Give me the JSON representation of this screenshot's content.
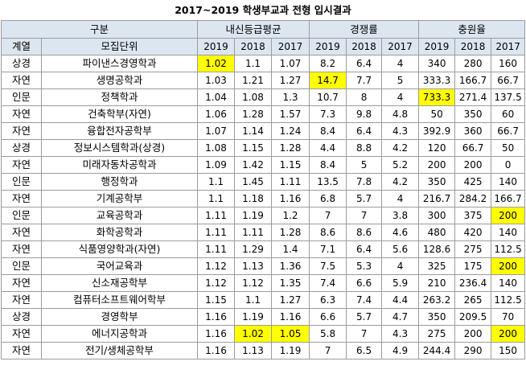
{
  "title": "2017~2019 학생부교과 전형 입시결과",
  "colors": {
    "header_bg": "#dce6f1",
    "highlight": "#ffff00",
    "border": "#9c9c9c"
  },
  "header": {
    "group": "구분",
    "grade": "내신등급평균",
    "competition": "경쟁률",
    "fill_rate": "충원율",
    "field": "계열",
    "dept": "모집단위",
    "years": [
      "2019",
      "2018",
      "2017"
    ]
  },
  "rows": [
    {
      "field": "상경",
      "dept": "파이낸스경영학과",
      "g": [
        "1.02",
        "1.1",
        "1.07"
      ],
      "c": [
        "8.2",
        "6.4",
        "4"
      ],
      "f": [
        "340",
        "280",
        "160"
      ],
      "hl": [
        1
      ]
    },
    {
      "field": "자연",
      "dept": "생명공학과",
      "g": [
        "1.03",
        "1.21",
        "1.27"
      ],
      "c": [
        "14.7",
        "7.7",
        "5"
      ],
      "f": [
        "333.3",
        "166.7",
        "66.7"
      ],
      "hl": [
        4
      ]
    },
    {
      "field": "인문",
      "dept": "정책학과",
      "g": [
        "1.04",
        "1.08",
        "1.3"
      ],
      "c": [
        "10.7",
        "8",
        "4"
      ],
      "f": [
        "733.3",
        "271.4",
        "137.5"
      ],
      "hl": [
        7
      ]
    },
    {
      "field": "자연",
      "dept": "건축학부(자연)",
      "g": [
        "1.06",
        "1.28",
        "1.57"
      ],
      "c": [
        "7.3",
        "9.8",
        "4.8"
      ],
      "f": [
        "50",
        "350",
        "60"
      ],
      "hl": []
    },
    {
      "field": "자연",
      "dept": "융합전자공학부",
      "g": [
        "1.07",
        "1.14",
        "1.24"
      ],
      "c": [
        "8.4",
        "6.4",
        "4.3"
      ],
      "f": [
        "392.9",
        "360",
        "66.7"
      ],
      "hl": []
    },
    {
      "field": "상경",
      "dept": "정보시스템학과(상경)",
      "g": [
        "1.08",
        "1.15",
        "1.28"
      ],
      "c": [
        "4.4",
        "8.8",
        "4.2"
      ],
      "f": [
        "120",
        "66.7",
        "50"
      ],
      "hl": []
    },
    {
      "field": "자연",
      "dept": "미래자동차공학과",
      "g": [
        "1.09",
        "1.42",
        "1.15"
      ],
      "c": [
        "8.4",
        "5",
        "5.2"
      ],
      "f": [
        "200",
        "200",
        "0"
      ],
      "hl": []
    },
    {
      "field": "인문",
      "dept": "행정학과",
      "g": [
        "1.1",
        "1.45",
        "1.11"
      ],
      "c": [
        "13.5",
        "7.8",
        "4.2"
      ],
      "f": [
        "350",
        "425",
        "140"
      ],
      "hl": []
    },
    {
      "field": "자연",
      "dept": "기계공학부",
      "g": [
        "1.1",
        "1.18",
        "1.16"
      ],
      "c": [
        "6.8",
        "5.7",
        "4"
      ],
      "f": [
        "216.7",
        "284.2",
        "166.7"
      ],
      "hl": []
    },
    {
      "field": "인문",
      "dept": "교육공학과",
      "g": [
        "1.11",
        "1.19",
        "1.2"
      ],
      "c": [
        "7",
        "7",
        "3.8"
      ],
      "f": [
        "300",
        "375",
        "200"
      ],
      "hl": [
        9
      ]
    },
    {
      "field": "자연",
      "dept": "화학공학과",
      "g": [
        "1.11",
        "1.11",
        "1.28"
      ],
      "c": [
        "8.6",
        "8.6",
        "4.6"
      ],
      "f": [
        "480",
        "420",
        "140"
      ],
      "hl": []
    },
    {
      "field": "자연",
      "dept": "식품영양학과(자연)",
      "g": [
        "1.11",
        "1.29",
        "1.4"
      ],
      "c": [
        "7.1",
        "6.4",
        "5.6"
      ],
      "f": [
        "128.6",
        "275",
        "112.5"
      ],
      "hl": []
    },
    {
      "field": "인문",
      "dept": "국어교육과",
      "g": [
        "1.12",
        "1.13",
        "1.36"
      ],
      "c": [
        "7.5",
        "5.3",
        "4"
      ],
      "f": [
        "325",
        "175",
        "200"
      ],
      "hl": [
        9
      ]
    },
    {
      "field": "자연",
      "dept": "신소재공학부",
      "g": [
        "1.12",
        "1.12",
        "1.35"
      ],
      "c": [
        "7.4",
        "6.6",
        "5.9"
      ],
      "f": [
        "210",
        "236.4",
        "140"
      ],
      "hl": []
    },
    {
      "field": "자연",
      "dept": "컴퓨터소프트웨어학부",
      "g": [
        "1.15",
        "1.1",
        "1.27"
      ],
      "c": [
        "6.3",
        "7.4",
        "4.4"
      ],
      "f": [
        "263.2",
        "265",
        "112.5"
      ],
      "hl": []
    },
    {
      "field": "상경",
      "dept": "경영학부",
      "g": [
        "1.16",
        "1.19",
        "1.16"
      ],
      "c": [
        "6.6",
        "5.7",
        "4.7"
      ],
      "f": [
        "350",
        "209.5",
        "70"
      ],
      "hl": []
    },
    {
      "field": "자연",
      "dept": "에너지공학과",
      "g": [
        "1.16",
        "1.02",
        "1.05"
      ],
      "c": [
        "5.8",
        "7",
        "4.3"
      ],
      "f": [
        "275",
        "200",
        "200"
      ],
      "hl": [
        2,
        3,
        9
      ]
    },
    {
      "field": "자연",
      "dept": "전기/생체공학부",
      "g": [
        "1.16",
        "1.13",
        "1.19"
      ],
      "c": [
        "7",
        "6.5",
        "4.9"
      ],
      "f": [
        "244.4",
        "290",
        "150"
      ],
      "hl": []
    }
  ]
}
